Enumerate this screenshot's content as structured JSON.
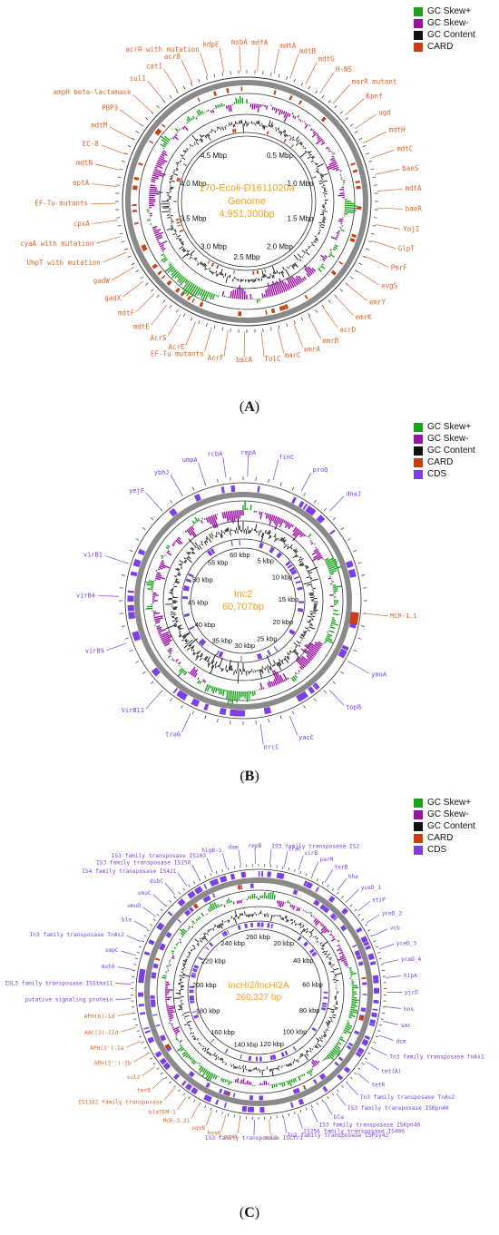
{
  "colors": {
    "gc_skew_plus": "#1aa31a",
    "gc_skew_minus": "#9b12a4",
    "gc_content": "#111111",
    "card": "#c8400f",
    "cds": "#7b3fe4",
    "label_orange": "#e0662a",
    "center_text": "#f5a21a",
    "ring_grey": "#8a8a8a"
  },
  "panels": [
    {
      "id": "A",
      "caption_letter": "A",
      "legend": [
        "GC Skew+",
        "GC Skew-",
        "GC Content",
        "CARD"
      ],
      "center_title_lines": [
        "170-Ecoli-D1611020a",
        "Genome",
        "4,951,300bp"
      ],
      "ticks": [
        "0.5 Mbp",
        "1.0 Mbp",
        "1.5 Mbp",
        "2.0 Mbp",
        "2.5 Mbp",
        "3.0 Mbp",
        "3.5 Mbp",
        "4.0 Mbp",
        "4.5 Mbp"
      ],
      "genes": [
        "mdtA",
        "mdtB",
        "mdtG",
        "H-NS",
        "marR mutant",
        "Kpnf",
        "ugd",
        "mdtH",
        "mdtC",
        "baeS",
        "mdtA",
        "baeR",
        "YojI",
        "GlpT",
        "PmrF",
        "evgS",
        "emrY",
        "emrK",
        "acrD",
        "emrB",
        "emrA",
        "marC",
        "TolC",
        "bacA",
        "AcrF",
        "EF-Tu mutants",
        "AcrE",
        "AcrS",
        "mdtE",
        "mdtF",
        "gadX",
        "gadW",
        "UhpT with mutation",
        "cyaA with mutation",
        "cpxA",
        "EF-Tu mutants",
        "eptA",
        "mdtN",
        "EC-8",
        "mdtM",
        "PBP3",
        "ampH beta-lactamase",
        "sul1",
        "catI",
        "acrB",
        "acrR with mutation",
        "kdpE",
        "msbA",
        "mdfA"
      ],
      "gene_colors": "orange"
    },
    {
      "id": "B",
      "caption_letter": "B",
      "legend": [
        "GC Skew+",
        "GC Skew-",
        "GC Content",
        "CARD",
        "CDS"
      ],
      "center_title_lines": [
        "Inc2",
        "60,707bp"
      ],
      "ticks": [
        "5 kbp",
        "10 kbp",
        "15 kbp",
        "20 kbp",
        "25 kbp",
        "30 kbp",
        "35 kbp",
        "40 kbp",
        "45 kbp",
        "50 kbp",
        "55 kbp",
        "60 kbp"
      ],
      "genes": [
        "repA",
        "finC",
        "proQ",
        "dnaJ",
        "MCR-1.1",
        "ymoA",
        "topB",
        "yacC",
        "nrcC",
        "traG",
        "VirB11",
        "virB9",
        "virB4",
        "virB1",
        "yejF",
        "ybhJ",
        "umpA",
        "rcbA"
      ],
      "gene_colors": "mixed"
    },
    {
      "id": "C",
      "caption_letter": "C",
      "legend": [
        "GC Skew+",
        "GC Skew-",
        "GC Content",
        "CARD",
        "CDS"
      ],
      "center_title_lines": [
        "IncHI2/IncHI2A",
        "260,327 bp"
      ],
      "ticks": [
        "20 kbp",
        "40 kbp",
        "60 kbp",
        "80 kbp",
        "100 kbp",
        "120 kbp",
        "140 kbp",
        "160 kbp",
        "180 kbp",
        "200 kbp",
        "220 kbp",
        "240 kbp",
        "260 kbp"
      ],
      "genes": [
        "dam",
        "repB",
        "IS3 family transposase IS2",
        "traC",
        "virB",
        "parM",
        "terD",
        "hha",
        "yceD_1",
        "stiP",
        "yceD_2",
        "vcb",
        "yceD_3",
        "yceD_4",
        "hipA",
        "yjcD",
        "hns",
        "smc",
        "dcm",
        "Tn3 family transposase TnAs1",
        "tet(A)",
        "tetR",
        "Tn3 family transposase TnAs2",
        "IS3 family transposase ISKpn40",
        "bla",
        "IS3 family transposase ISKpn40",
        "IS256 family transposase IS406",
        "Tn3 family transposase ISPsy42",
        "sul1",
        "IS3 family transposase ISCfr1",
        "oqxA",
        "hosB",
        "oqxB",
        "MCR-3.21",
        "blaTEM-1",
        "IS1182 family transposase",
        "tmrB",
        "sul2",
        "APH(3'')-Ib",
        "APH(3')-Ia",
        "AAC(3)-IId",
        "APH(6)-Id",
        "putative signaling protein",
        "ISL3 family transposase ISStma11",
        "mutA",
        "smpC",
        "Tn3 family transposase TnAs2",
        "bla",
        "umuD",
        "umuC",
        "dsbC",
        "IS4 family transposase IS421",
        "IS3 family transposase IS150",
        "IS3 family transposase IS103",
        "higB-1"
      ],
      "gene_colors": "mixed"
    }
  ]
}
